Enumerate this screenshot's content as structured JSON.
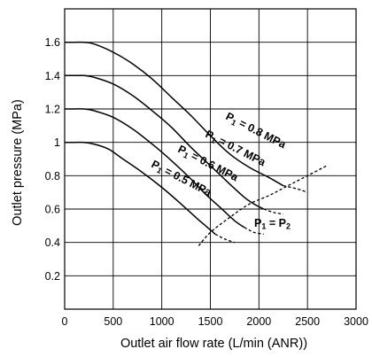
{
  "chart_data": {
    "type": "line",
    "xlabel": "Outlet air flow rate (L/min (ANR))",
    "ylabel": "Outlet pressure (MPa)",
    "xlim": [
      0,
      3000
    ],
    "ylim": [
      0,
      1.8
    ],
    "x_ticks": [
      0,
      500,
      1000,
      1500,
      2000,
      2500,
      3000
    ],
    "y_ticks": [
      0.2,
      0.4,
      0.6,
      0.8,
      1,
      1.2,
      1.4,
      1.6
    ],
    "grid": true,
    "series": [
      {
        "name": "P1 = 0.8 MPa",
        "label_main": "P",
        "label_sub": "1",
        "label_rest": " = 0.8 MPa",
        "solid": [
          [
            0,
            1.6
          ],
          [
            100,
            1.6
          ],
          [
            200,
            1.6
          ],
          [
            300,
            1.59
          ],
          [
            500,
            1.54
          ],
          [
            700,
            1.47
          ],
          [
            900,
            1.38
          ],
          [
            1100,
            1.27
          ],
          [
            1300,
            1.16
          ],
          [
            1500,
            1.04
          ],
          [
            1700,
            0.93
          ],
          [
            1900,
            0.85
          ],
          [
            2100,
            0.79
          ],
          [
            2250,
            0.74
          ]
        ],
        "dashed": [
          [
            2250,
            0.74
          ],
          [
            2400,
            0.72
          ],
          [
            2500,
            0.7
          ]
        ]
      },
      {
        "name": "P1 = 0.7 MPa",
        "label_main": "P",
        "label_sub": "1",
        "label_rest": " = 0.7 MPa",
        "solid": [
          [
            0,
            1.4
          ],
          [
            100,
            1.4
          ],
          [
            200,
            1.4
          ],
          [
            300,
            1.39
          ],
          [
            500,
            1.35
          ],
          [
            700,
            1.28
          ],
          [
            900,
            1.19
          ],
          [
            1100,
            1.09
          ],
          [
            1300,
            0.97
          ],
          [
            1500,
            0.86
          ],
          [
            1700,
            0.75
          ],
          [
            1850,
            0.67
          ],
          [
            1950,
            0.63
          ],
          [
            2050,
            0.6
          ]
        ],
        "dashed": [
          [
            2050,
            0.6
          ],
          [
            2150,
            0.58
          ],
          [
            2250,
            0.57
          ]
        ]
      },
      {
        "name": "P1 = 0.6 MPa",
        "label_main": "P",
        "label_sub": "1",
        "label_rest": " = 0.6 MPa",
        "solid": [
          [
            0,
            1.2
          ],
          [
            100,
            1.2
          ],
          [
            200,
            1.2
          ],
          [
            300,
            1.19
          ],
          [
            500,
            1.15
          ],
          [
            700,
            1.08
          ],
          [
            900,
            0.99
          ],
          [
            1100,
            0.89
          ],
          [
            1300,
            0.78
          ],
          [
            1450,
            0.69
          ],
          [
            1600,
            0.61
          ],
          [
            1750,
            0.53
          ],
          [
            1850,
            0.49
          ]
        ],
        "dashed": [
          [
            1850,
            0.49
          ],
          [
            1950,
            0.46
          ],
          [
            2050,
            0.45
          ]
        ]
      },
      {
        "name": "P1 = 0.5 MPa",
        "label_main": "P",
        "label_sub": "1",
        "label_rest": " = 0.5 MPa",
        "solid": [
          [
            0,
            1
          ],
          [
            100,
            1
          ],
          [
            200,
            1
          ],
          [
            300,
            0.99
          ],
          [
            450,
            0.96
          ],
          [
            600,
            0.9
          ],
          [
            800,
            0.82
          ],
          [
            1000,
            0.73
          ],
          [
            1200,
            0.63
          ],
          [
            1350,
            0.55
          ],
          [
            1450,
            0.5
          ],
          [
            1550,
            0.45
          ]
        ],
        "dashed": [
          [
            1550,
            0.45
          ],
          [
            1650,
            0.42
          ],
          [
            1750,
            0.4
          ]
        ]
      },
      {
        "name": "P1 = P2",
        "label_main": "P",
        "label_sub": "1",
        "label_rest": " = P",
        "label_sub2": "2",
        "solid": [],
        "dashed": [
          [
            1380,
            0.38
          ],
          [
            1500,
            0.46
          ],
          [
            1700,
            0.55
          ],
          [
            1900,
            0.63
          ],
          [
            2100,
            0.68
          ],
          [
            2300,
            0.74
          ],
          [
            2500,
            0.8
          ],
          [
            2700,
            0.86
          ]
        ]
      }
    ]
  }
}
